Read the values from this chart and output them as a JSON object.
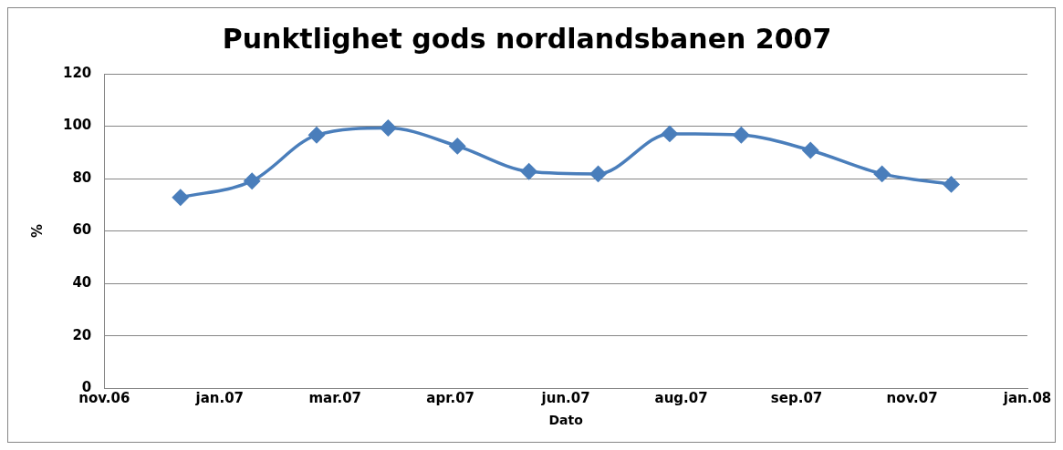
{
  "chart_data": {
    "type": "line",
    "title": "Punktlighet gods nordlandsbanen 2007",
    "xlabel": "Dato",
    "ylabel": "%",
    "x": [
      "2007-01-01",
      "2007-02-01",
      "2007-03-01",
      "2007-04-01",
      "2007-05-01",
      "2007-06-01",
      "2007-07-01",
      "2007-08-01",
      "2007-09-01",
      "2007-10-01",
      "2007-11-01",
      "2007-12-01"
    ],
    "series": [
      {
        "color": "#4a7ebb",
        "values": [
          72.8,
          79.1,
          96.6,
          99.3,
          92.4,
          82.7,
          81.8,
          97.1,
          96.6,
          90.8,
          81.8,
          77.8
        ]
      }
    ],
    "xlim": [
      "2006-11-29",
      "2008-01-03"
    ],
    "xticks": [
      {
        "value": "2006-11-29",
        "label": "nov.06"
      },
      {
        "value": "2007-01-18",
        "label": "jan.07"
      },
      {
        "value": "2007-03-09",
        "label": "mar.07"
      },
      {
        "value": "2007-04-28",
        "label": "apr.07"
      },
      {
        "value": "2007-06-17",
        "label": "jun.07"
      },
      {
        "value": "2007-08-06",
        "label": "aug.07"
      },
      {
        "value": "2007-09-25",
        "label": "sep.07"
      },
      {
        "value": "2007-11-14",
        "label": "nov.07"
      },
      {
        "value": "2008-01-03",
        "label": "jan.08"
      }
    ],
    "ylim": [
      0,
      120
    ],
    "yticks": [
      0,
      20,
      40,
      60,
      80,
      100,
      120
    ],
    "grid": "y",
    "legend": false,
    "marker": "diamond",
    "line_style": "solid"
  }
}
